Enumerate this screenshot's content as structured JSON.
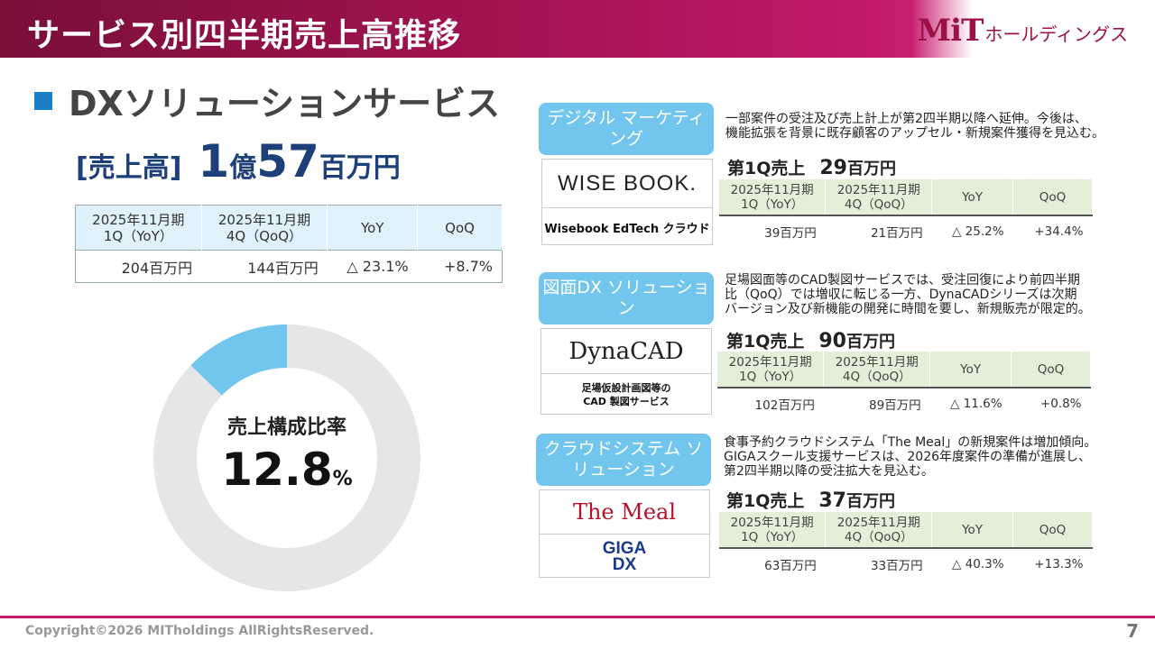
{
  "header": {
    "title": "サービス別四半期売上高推移",
    "logo_mark": "MiT",
    "logo_text": "ホールディングス"
  },
  "section": {
    "title": "DXソリューションサービス"
  },
  "sales": {
    "label": "[売上高]",
    "part1": "1",
    "part2": "億",
    "part3": "57",
    "part4": "百万円"
  },
  "main_table": {
    "headers": [
      "2025年11月期\n1Q（YoY）",
      "2025年11月期\n4Q（QoQ）",
      "YoY",
      "QoQ"
    ],
    "row": [
      "204百万円",
      "144百万円",
      "△ 23.1%",
      "+8.7%"
    ]
  },
  "donut": {
    "label": "売上構成比率",
    "value": "12.8",
    "unit": "%",
    "fraction": 0.128,
    "colors": {
      "highlight": "#72c6ed",
      "rest": "#e6e6e6"
    }
  },
  "services": [
    {
      "pill": "デジタル\nマーケティング",
      "logo_top": "WISE BOOK.",
      "logo_bottom": "Wisebook EdTech クラウド",
      "description": "一部案件の受注及び売上計上が第2四半期以降へ延伸。今後は、\n機能拡張を背景に既存顧客のアップセル・新規案件獲得を見込む。",
      "q_label": "第1Q売上",
      "q_value": "29",
      "q_unit": "百万円",
      "headers": [
        "2025年11月期\n1Q（YoY）",
        "2025年11月期\n4Q（QoQ）",
        "YoY",
        "QoQ"
      ],
      "row": [
        "39百万円",
        "21百万円",
        "△ 25.2%",
        "+34.4%"
      ]
    },
    {
      "pill": "図面DX\nソリューション",
      "logo_top": "DynaCAD",
      "logo_bottom": "足場仮設計画図等の\nCAD 製図サービス",
      "description": "足場図面等のCAD製図サービスでは、受注回復により前四半期\n比（QoQ）では増収に転じる一方、DynaCADシリーズは次期\nバージョン及び新機能の開発に時間を要し、新規販売が限定的。",
      "q_label": "第1Q売上",
      "q_value": "90",
      "q_unit": "百万円",
      "headers": [
        "2025年11月期\n1Q（YoY）",
        "2025年11月期\n4Q（QoQ）",
        "YoY",
        "QoQ"
      ],
      "row": [
        "102百万円",
        "89百万円",
        "△ 11.6%",
        "+0.8%"
      ]
    },
    {
      "pill": "クラウドシステム\nソリューション",
      "logo_top": "The Meal",
      "logo_bottom": "GIGA\nDX",
      "description": "食事予約クラウドシステム「The Meal」の新規案件は増加傾向。\nGIGAスクール支援サービスは、2026年度案件の準備が進展し、\n第2四半期以降の受注拡大を見込む。",
      "q_label": "第1Q売上",
      "q_value": "37",
      "q_unit": "百万円",
      "headers": [
        "2025年11月期\n1Q（YoY）",
        "2025年11月期\n4Q（QoQ）",
        "YoY",
        "QoQ"
      ],
      "row": [
        "63百万円",
        "33百万円",
        "△ 40.3%",
        "+13.3%"
      ]
    }
  ],
  "footer": {
    "copyright": "Copyright©2026 MITholdings AllRightsReserved.",
    "page": "7"
  }
}
